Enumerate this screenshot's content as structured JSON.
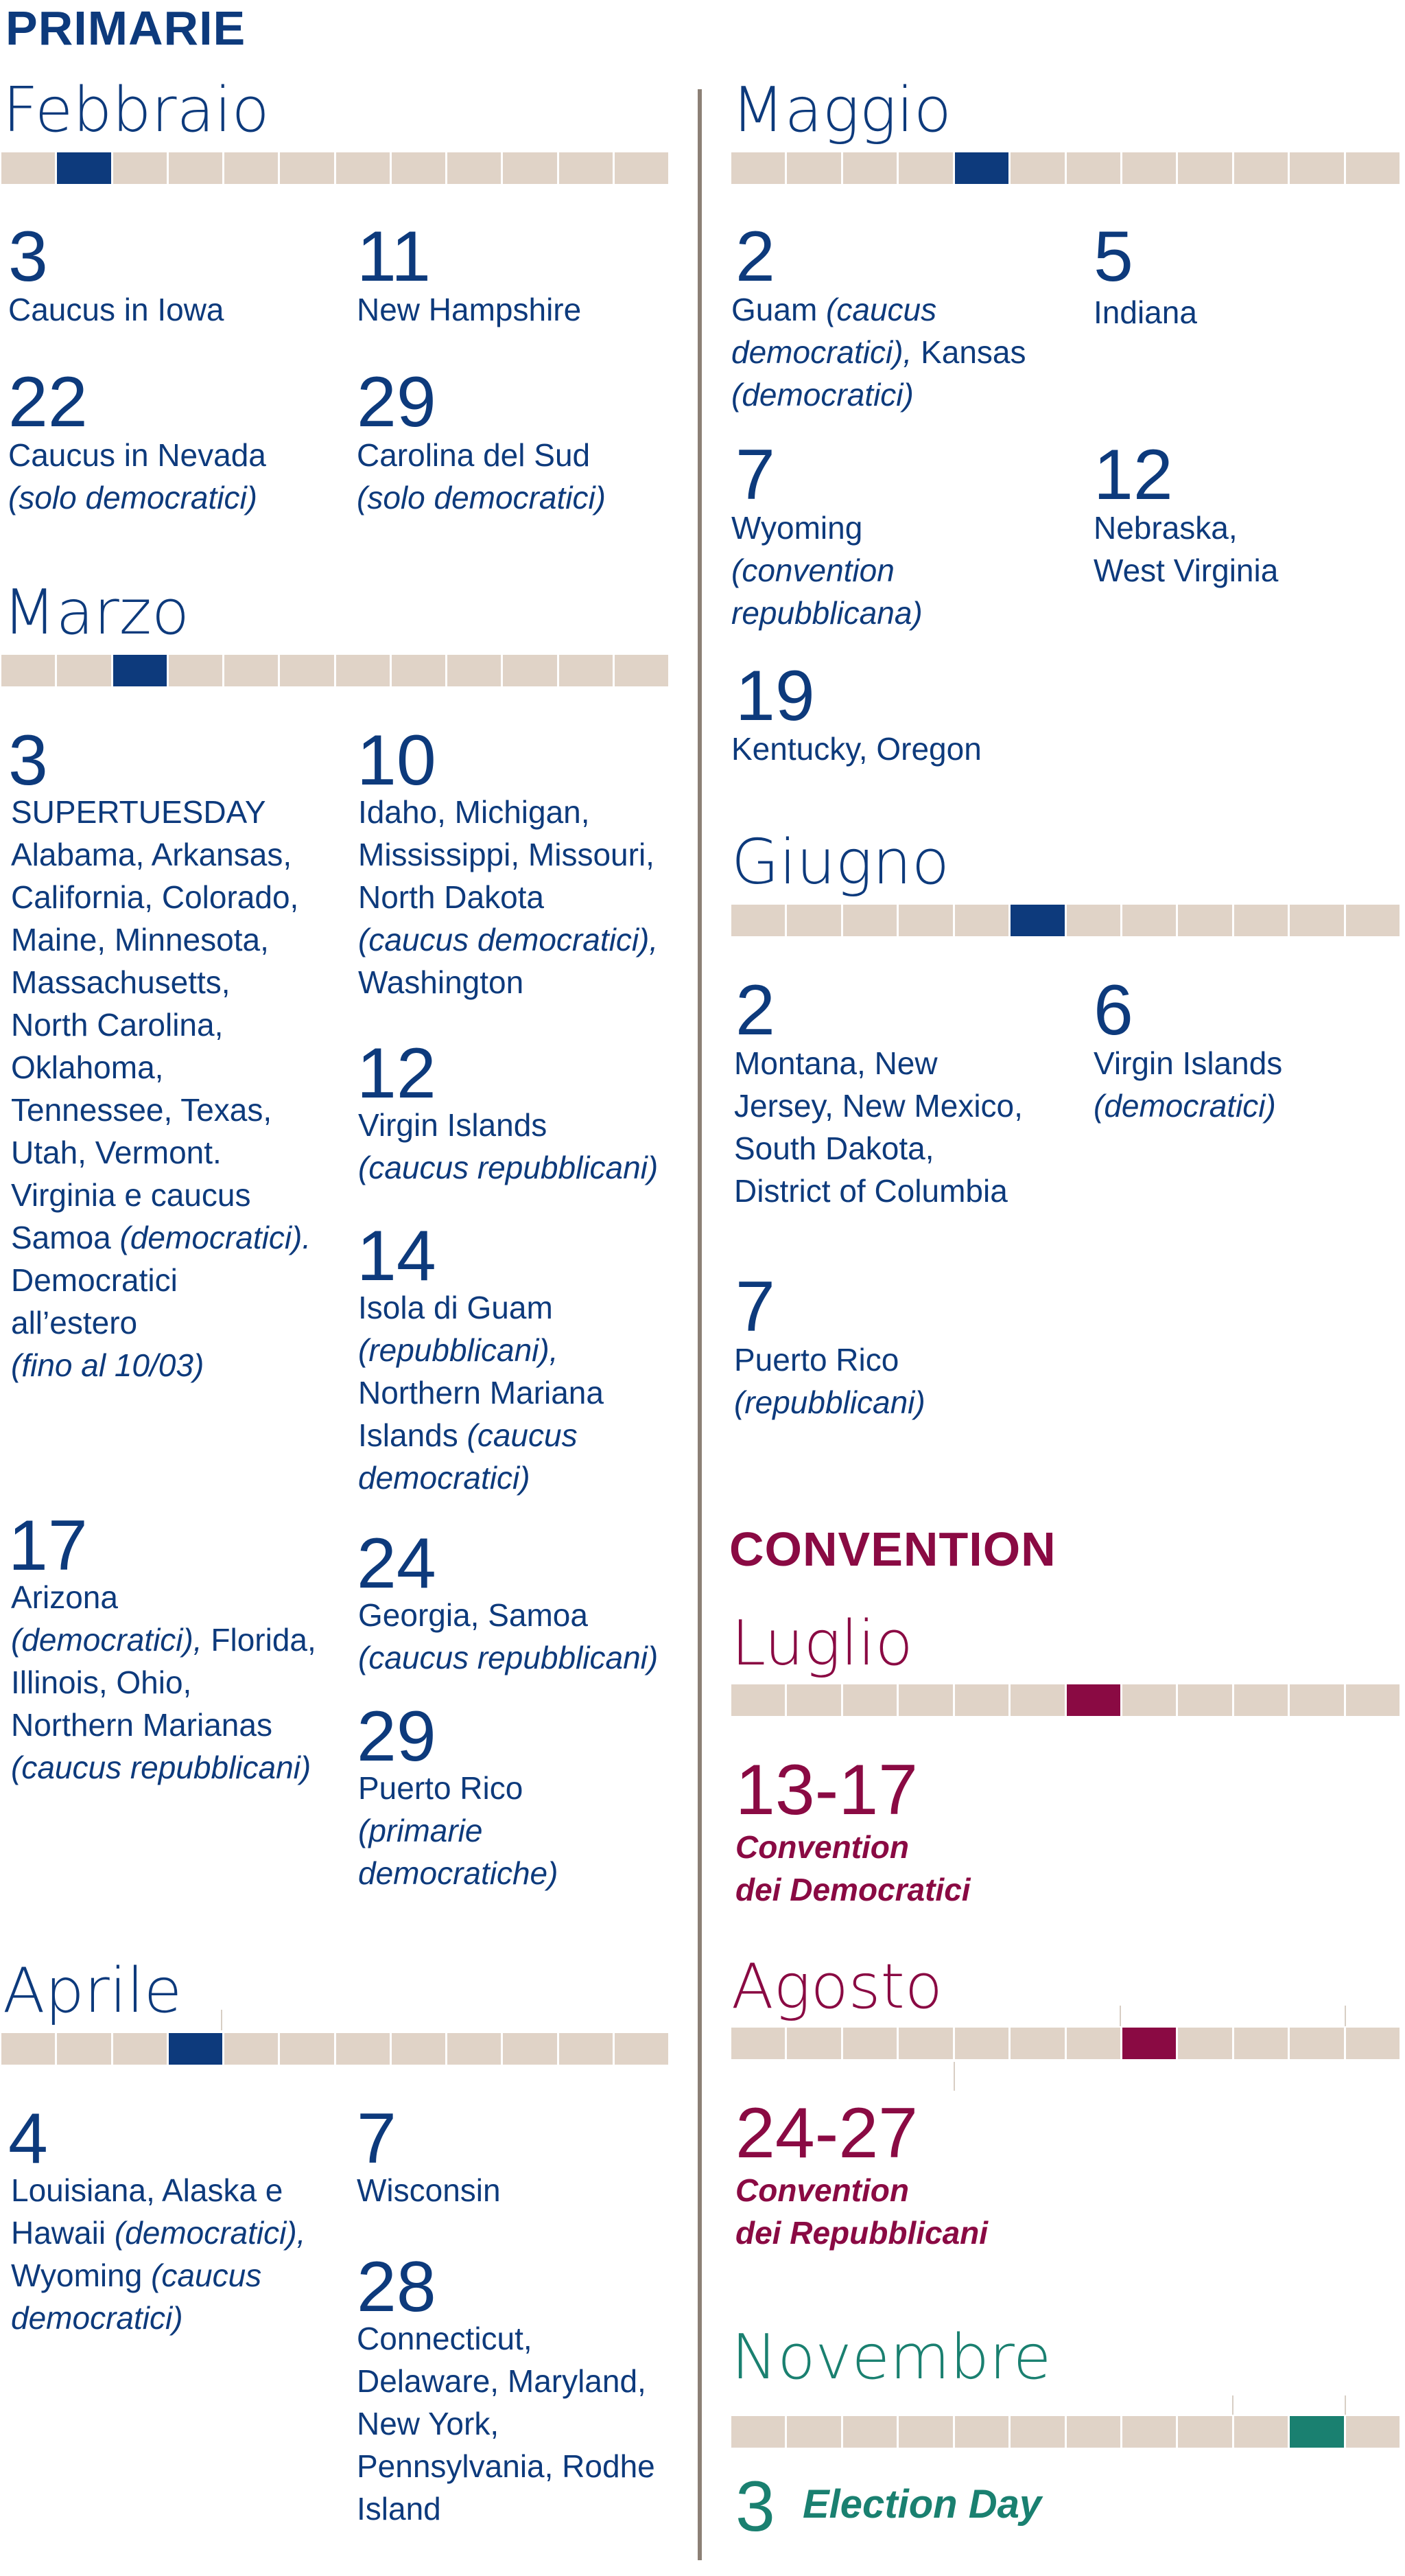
{
  "primarie_title": "PRIMARIE",
  "convention_title": "CONVENTION",
  "colors": {
    "primary": "#0d3a7c",
    "convention": "#8a0a43",
    "election": "#1a8070",
    "bar": "#e0d3c7",
    "divider": "#8c8076"
  },
  "months": {
    "febbraio": {
      "name": "Febbraio",
      "highlight_segment": 2,
      "events": [
        {
          "day": "3",
          "lines": [
            [
              "Caucus in Iowa"
            ]
          ]
        },
        {
          "day": "11",
          "lines": [
            [
              "New Hampshire"
            ]
          ]
        },
        {
          "day": "22",
          "lines": [
            [
              "Caucus in Nevada"
            ],
            [
              "(solo democratici)"
            ]
          ]
        },
        {
          "day": "29",
          "lines": [
            [
              "Carolina del Sud"
            ],
            [
              "(solo democratici)"
            ]
          ]
        }
      ]
    },
    "marzo": {
      "name": "Marzo",
      "highlight_segment": 3,
      "events": [
        {
          "day": "3",
          "lines": [
            "SUPERTUESDAY",
            "Alabama, Arkansas,",
            "California, Colorado,",
            "Maine, Minnesota,",
            "Massachusetts,",
            "North Carolina,",
            "Oklahoma,",
            "Tennessee, Texas,",
            "Utah, Vermont.",
            "Virginia e caucus",
            "Samoa",
            "(democratici).",
            "Democratici",
            "all’estero",
            "(fino al 10/03)"
          ]
        },
        {
          "day": "10",
          "lines": [
            "Idaho, Michigan,",
            "Mississippi, Missouri,",
            "North Dakota",
            "(caucus democratici),",
            "Washington"
          ]
        },
        {
          "day": "12",
          "lines": [
            "Virgin Islands",
            "(caucus repubblicani)"
          ]
        },
        {
          "day": "14",
          "lines": [
            "Isola di Guam",
            "(repubblicani),",
            "Northern Mariana",
            "Islands",
            "(caucus",
            "democratici)"
          ]
        },
        {
          "day": "17",
          "lines": [
            "Arizona",
            "(democratici),",
            "Florida,",
            "Illinois, Ohio,",
            "Northern Marianas",
            "(caucus repubblicani)"
          ]
        },
        {
          "day": "24",
          "lines": [
            "Georgia, Samoa",
            "(caucus repubblicani)"
          ]
        },
        {
          "day": "29",
          "lines": [
            "Puerto Rico",
            "(primarie",
            "democratiche)"
          ]
        }
      ]
    },
    "aprile": {
      "name": "Aprile",
      "highlight_segment": 4,
      "events": [
        {
          "day": "4",
          "lines": [
            "Louisiana, Alaska e",
            "Hawaii",
            "(democratici),",
            "Wyoming",
            "(caucus",
            "democratici)"
          ]
        },
        {
          "day": "7",
          "lines": [
            "Wisconsin"
          ]
        },
        {
          "day": "28",
          "lines": [
            "Connecticut,",
            "Delaware, Maryland,",
            "New York,",
            "Pennsylvania, Rodhe",
            "Island"
          ]
        }
      ]
    },
    "maggio": {
      "name": "Maggio",
      "highlight_segment": 5,
      "events": [
        {
          "day": "2",
          "lines": [
            "Guam",
            "(caucus",
            "democratici),",
            "Kansas",
            "(democratici)"
          ]
        },
        {
          "day": "5",
          "lines": [
            "Indiana"
          ]
        },
        {
          "day": "7",
          "lines": [
            "Wyoming",
            "(convention",
            "repubblicana)"
          ]
        },
        {
          "day": "12",
          "lines": [
            "Nebraska,",
            "West Virginia"
          ]
        },
        {
          "day": "19",
          "lines": [
            "Kentucky, Oregon"
          ]
        }
      ]
    },
    "giugno": {
      "name": "Giugno",
      "highlight_segment": 6,
      "events": [
        {
          "day": "2",
          "lines": [
            "Montana, New",
            "Jersey, New Mexico,",
            "South Dakota,",
            "District of Columbia"
          ]
        },
        {
          "day": "6",
          "lines": [
            "Virgin Islands",
            "(democratici)"
          ]
        },
        {
          "day": "7",
          "lines": [
            "Puerto Rico",
            "(repubblicani)"
          ]
        }
      ]
    },
    "luglio": {
      "name": "Luglio",
      "highlight_segment": 7,
      "events": [
        {
          "day": "13-17",
          "lines": [
            "Convention",
            "dei Democratici"
          ]
        }
      ]
    },
    "agosto": {
      "name": "Agosto",
      "highlight_segment": 8,
      "events": [
        {
          "day": "24-27",
          "lines": [
            "Convention",
            "dei Repubblicani"
          ]
        }
      ]
    },
    "novembre": {
      "name": "Novembre",
      "highlight_segment": 11,
      "events": [
        {
          "day": "3",
          "label": "Election Day"
        }
      ]
    }
  }
}
